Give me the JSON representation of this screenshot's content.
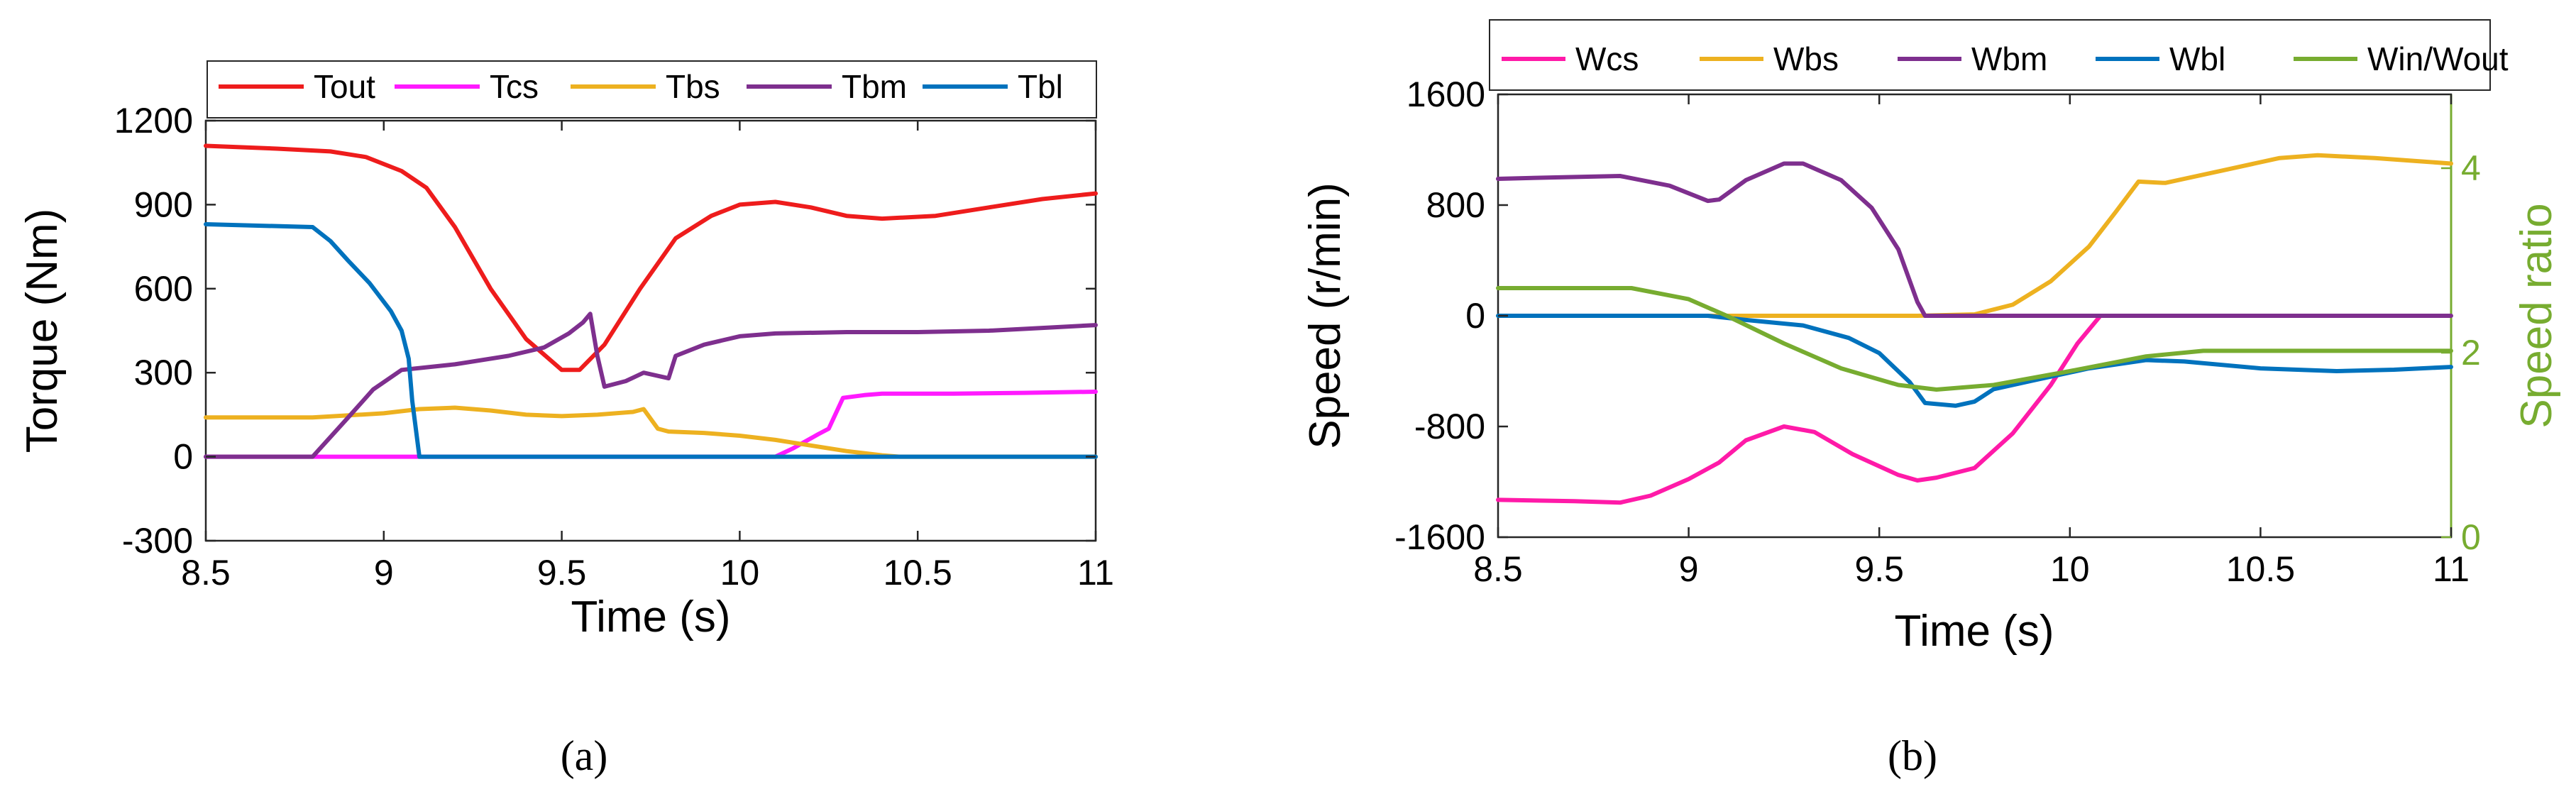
{
  "captions": {
    "a": "(a)",
    "b": "(b)"
  },
  "chart_data": [
    {
      "id": "a",
      "type": "line",
      "xlabel": "Time (s)",
      "ylabel": "Torque (Nm)",
      "xlim": [
        8.5,
        11
      ],
      "ylim": [
        -300,
        1200
      ],
      "xticks": [
        8.5,
        9,
        9.5,
        10,
        10.5,
        11
      ],
      "xtick_labels": [
        "8.5",
        "9",
        "9.5",
        "10",
        "10.5",
        "11"
      ],
      "yticks": [
        -300,
        0,
        300,
        600,
        900,
        1200
      ],
      "ytick_labels": [
        "-300",
        "0",
        "300",
        "600",
        "900",
        "1200"
      ],
      "grid": false,
      "legend_position": "top",
      "series": [
        {
          "name": "Tout",
          "color": "#ee1c1c",
          "points": [
            [
              8.5,
              1110
            ],
            [
              8.7,
              1100
            ],
            [
              8.85,
              1090
            ],
            [
              8.95,
              1070
            ],
            [
              9.05,
              1020
            ],
            [
              9.12,
              960
            ],
            [
              9.2,
              820
            ],
            [
              9.3,
              600
            ],
            [
              9.4,
              420
            ],
            [
              9.5,
              310
            ],
            [
              9.55,
              310
            ],
            [
              9.62,
              400
            ],
            [
              9.72,
              600
            ],
            [
              9.82,
              780
            ],
            [
              9.92,
              860
            ],
            [
              10.0,
              900
            ],
            [
              10.1,
              910
            ],
            [
              10.2,
              890
            ],
            [
              10.3,
              860
            ],
            [
              10.4,
              850
            ],
            [
              10.55,
              860
            ],
            [
              10.7,
              890
            ],
            [
              10.85,
              920
            ],
            [
              11.0,
              940
            ]
          ]
        },
        {
          "name": "Tcs",
          "color": "#ff1aff",
          "points": [
            [
              8.5,
              0
            ],
            [
              10.1,
              0
            ],
            [
              10.15,
              30
            ],
            [
              10.22,
              80
            ],
            [
              10.25,
              100
            ],
            [
              10.29,
              210
            ],
            [
              10.35,
              220
            ],
            [
              10.4,
              225
            ],
            [
              10.6,
              225
            ],
            [
              10.8,
              228
            ],
            [
              11.0,
              232
            ]
          ]
        },
        {
          "name": "Tbs",
          "color": "#edb120",
          "points": [
            [
              8.5,
              140
            ],
            [
              8.8,
              140
            ],
            [
              9.0,
              155
            ],
            [
              9.1,
              170
            ],
            [
              9.2,
              175
            ],
            [
              9.3,
              165
            ],
            [
              9.4,
              150
            ],
            [
              9.5,
              145
            ],
            [
              9.6,
              150
            ],
            [
              9.7,
              160
            ],
            [
              9.73,
              170
            ],
            [
              9.77,
              100
            ],
            [
              9.8,
              90
            ],
            [
              9.9,
              85
            ],
            [
              10.0,
              75
            ],
            [
              10.1,
              60
            ],
            [
              10.2,
              40
            ],
            [
              10.3,
              20
            ],
            [
              10.4,
              5
            ],
            [
              10.45,
              0
            ],
            [
              11.0,
              0
            ]
          ]
        },
        {
          "name": "Tbm",
          "color": "#7e2f8e",
          "points": [
            [
              8.5,
              0
            ],
            [
              8.8,
              0
            ],
            [
              8.9,
              140
            ],
            [
              8.97,
              240
            ],
            [
              9.05,
              310
            ],
            [
              9.2,
              330
            ],
            [
              9.35,
              360
            ],
            [
              9.45,
              390
            ],
            [
              9.52,
              440
            ],
            [
              9.56,
              480
            ],
            [
              9.58,
              510
            ],
            [
              9.6,
              360
            ],
            [
              9.62,
              250
            ],
            [
              9.68,
              270
            ],
            [
              9.73,
              300
            ],
            [
              9.8,
              280
            ],
            [
              9.82,
              360
            ],
            [
              9.9,
              400
            ],
            [
              10.0,
              430
            ],
            [
              10.1,
              440
            ],
            [
              10.3,
              445
            ],
            [
              10.5,
              445
            ],
            [
              10.7,
              450
            ],
            [
              10.85,
              460
            ],
            [
              11.0,
              470
            ]
          ]
        },
        {
          "name": "Tbl",
          "color": "#0072bd",
          "points": [
            [
              8.5,
              830
            ],
            [
              8.8,
              820
            ],
            [
              8.85,
              770
            ],
            [
              8.9,
              700
            ],
            [
              8.96,
              620
            ],
            [
              9.02,
              520
            ],
            [
              9.05,
              450
            ],
            [
              9.07,
              350
            ],
            [
              9.08,
              200
            ],
            [
              9.1,
              0
            ],
            [
              11.0,
              0
            ]
          ]
        }
      ]
    },
    {
      "id": "b",
      "type": "line",
      "xlabel": "Time (s)",
      "ylabel": "Speed (r/min)",
      "y2label": "Speed ratio",
      "xlim": [
        8.5,
        11
      ],
      "ylim": [
        -1600,
        1600
      ],
      "y2lim": [
        0,
        4.8
      ],
      "xticks": [
        8.5,
        9,
        9.5,
        10,
        10.5,
        11
      ],
      "xtick_labels": [
        "8.5",
        "9",
        "9.5",
        "10",
        "10.5",
        "11"
      ],
      "yticks": [
        -1600,
        -800,
        0,
        800,
        1600
      ],
      "ytick_labels": [
        "-1600",
        "-800",
        "0",
        "800",
        "1600"
      ],
      "y2ticks": [
        0,
        2,
        4
      ],
      "y2tick_labels": [
        "0",
        "2",
        "4"
      ],
      "grid": false,
      "legend_position": "top",
      "series": [
        {
          "name": "Wcs",
          "color": "#ff1aa8",
          "axis": "left",
          "points": [
            [
              8.5,
              -1330
            ],
            [
              8.7,
              -1340
            ],
            [
              8.82,
              -1350
            ],
            [
              8.9,
              -1300
            ],
            [
              9.0,
              -1180
            ],
            [
              9.08,
              -1060
            ],
            [
              9.15,
              -900
            ],
            [
              9.25,
              -800
            ],
            [
              9.33,
              -840
            ],
            [
              9.43,
              -1000
            ],
            [
              9.55,
              -1150
            ],
            [
              9.6,
              -1190
            ],
            [
              9.65,
              -1170
            ],
            [
              9.75,
              -1100
            ],
            [
              9.85,
              -850
            ],
            [
              9.95,
              -500
            ],
            [
              10.02,
              -200
            ],
            [
              10.08,
              0
            ]
          ]
        },
        {
          "name": "Wbs",
          "color": "#edb120",
          "axis": "left",
          "points": [
            [
              8.5,
              0
            ],
            [
              9.6,
              0
            ],
            [
              9.75,
              10
            ],
            [
              9.85,
              80
            ],
            [
              9.95,
              250
            ],
            [
              10.05,
              500
            ],
            [
              10.12,
              750
            ],
            [
              10.18,
              970
            ],
            [
              10.25,
              960
            ],
            [
              10.4,
              1050
            ],
            [
              10.55,
              1140
            ],
            [
              10.65,
              1160
            ],
            [
              10.8,
              1140
            ],
            [
              10.9,
              1120
            ],
            [
              11.0,
              1100
            ]
          ]
        },
        {
          "name": "Wbm",
          "color": "#7e2f8e",
          "axis": "left",
          "points": [
            [
              8.5,
              990
            ],
            [
              8.65,
              1000
            ],
            [
              8.82,
              1010
            ],
            [
              8.95,
              940
            ],
            [
              9.05,
              830
            ],
            [
              9.08,
              840
            ],
            [
              9.15,
              980
            ],
            [
              9.25,
              1100
            ],
            [
              9.3,
              1100
            ],
            [
              9.4,
              980
            ],
            [
              9.48,
              780
            ],
            [
              9.55,
              480
            ],
            [
              9.6,
              100
            ],
            [
              9.62,
              0
            ],
            [
              11.0,
              0
            ]
          ]
        },
        {
          "name": "Wbl",
          "color": "#0072bd",
          "axis": "left",
          "points": [
            [
              8.5,
              0
            ],
            [
              9.05,
              0
            ],
            [
              9.15,
              -30
            ],
            [
              9.3,
              -70
            ],
            [
              9.42,
              -160
            ],
            [
              9.5,
              -270
            ],
            [
              9.58,
              -480
            ],
            [
              9.62,
              -630
            ],
            [
              9.7,
              -650
            ],
            [
              9.75,
              -620
            ],
            [
              9.8,
              -530
            ],
            [
              9.9,
              -470
            ],
            [
              10.05,
              -380
            ],
            [
              10.2,
              -320
            ],
            [
              10.3,
              -330
            ],
            [
              10.5,
              -380
            ],
            [
              10.7,
              -400
            ],
            [
              10.85,
              -390
            ],
            [
              11.0,
              -370
            ]
          ]
        },
        {
          "name": "Win/Wout",
          "color": "#77ac30",
          "axis": "right",
          "points": [
            [
              8.5,
              2.7
            ],
            [
              8.85,
              2.7
            ],
            [
              9.0,
              2.58
            ],
            [
              9.1,
              2.4
            ],
            [
              9.25,
              2.1
            ],
            [
              9.4,
              1.83
            ],
            [
              9.55,
              1.65
            ],
            [
              9.65,
              1.6
            ],
            [
              9.8,
              1.65
            ],
            [
              10.0,
              1.8
            ],
            [
              10.2,
              1.96
            ],
            [
              10.35,
              2.02
            ],
            [
              10.5,
              2.02
            ],
            [
              11.0,
              2.02
            ]
          ]
        }
      ]
    }
  ]
}
